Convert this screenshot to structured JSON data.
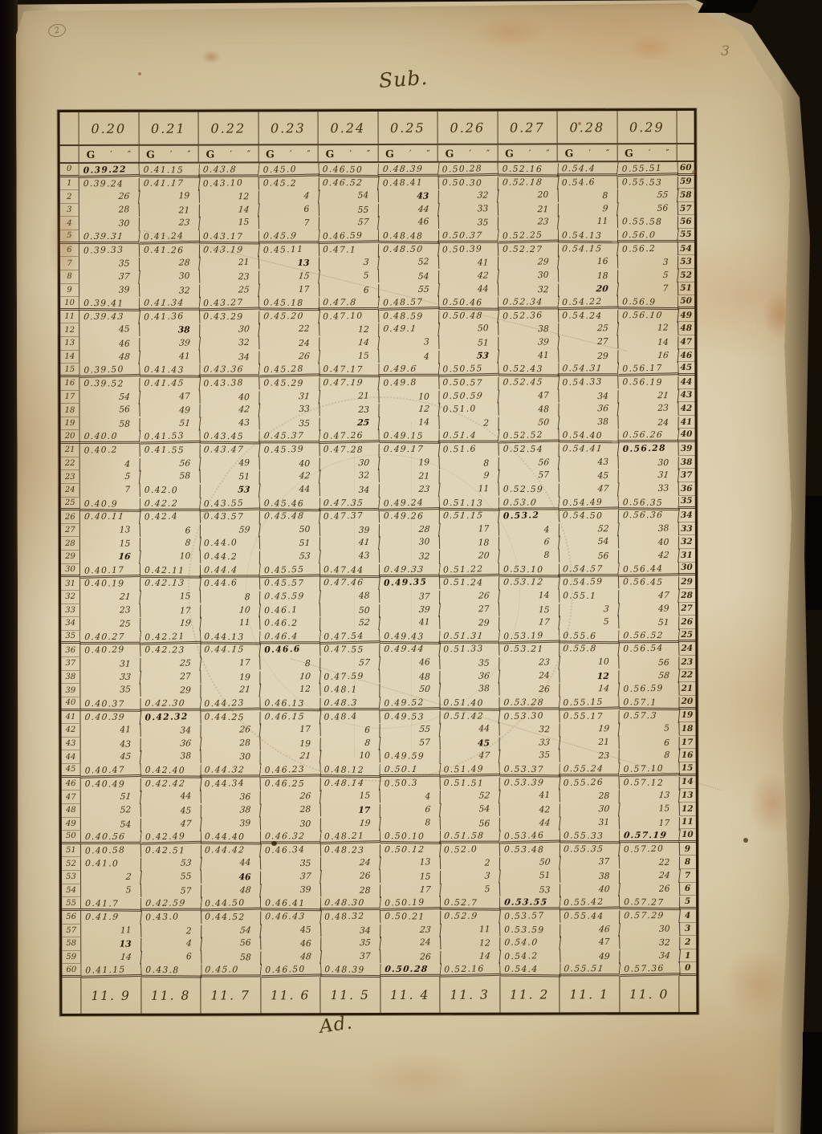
{
  "page": {
    "title_top": "Sub.",
    "title_bottom": "Ad.",
    "page_number": "3",
    "corner_mark": "2"
  },
  "colors": {
    "ink": "#3f2d10",
    "paper": "#d8cbab",
    "frame": "#2a1a08"
  },
  "table": {
    "unit_header": {
      "g": "G",
      "prime": "′",
      "double_prime": "″"
    },
    "left_row_numbers": [
      "0",
      "1",
      "2",
      "3",
      "4",
      "5",
      "6",
      "7",
      "8",
      "9",
      "10",
      "11",
      "12",
      "13",
      "14",
      "15",
      "16",
      "17",
      "18",
      "19",
      "20",
      "21",
      "22",
      "23",
      "24",
      "25",
      "26",
      "27",
      "28",
      "29",
      "30",
      "31",
      "32",
      "33",
      "34",
      "35",
      "36",
      "37",
      "38",
      "39",
      "40",
      "41",
      "42",
      "43",
      "44",
      "45",
      "46",
      "47",
      "48",
      "49",
      "50",
      "51",
      "52",
      "53",
      "54",
      "55",
      "56",
      "57",
      "58",
      "59",
      "60"
    ],
    "right_row_numbers": [
      "60",
      "59",
      "58",
      "57",
      "56",
      "55",
      "54",
      "53",
      "52",
      "51",
      "50",
      "49",
      "48",
      "47",
      "46",
      "45",
      "44",
      "43",
      "42",
      "41",
      "40",
      "39",
      "38",
      "37",
      "36",
      "35",
      "34",
      "33",
      "32",
      "31",
      "30",
      "29",
      "28",
      "27",
      "26",
      "25",
      "24",
      "23",
      "22",
      "21",
      "20",
      "19",
      "18",
      "17",
      "16",
      "15",
      "14",
      "13",
      "12",
      "11",
      "10",
      "9",
      "8",
      "7",
      "6",
      "5",
      "4",
      "3",
      "2",
      "1",
      "0"
    ],
    "columns": [
      {
        "header": "0.20",
        "footer": "11. 9",
        "cells": [
          "0.39.22",
          "0.39.24",
          "26",
          "28",
          "30",
          "0.39.31",
          "0.39.33",
          "35",
          "37",
          "39",
          "0.39.41",
          "0.39.43",
          "45",
          "46",
          "48",
          "0.39.50",
          "0.39.52",
          "54",
          "56",
          "58",
          "0.40.0",
          "0.40.2",
          "4",
          "5",
          "7",
          "0.40.9",
          "0.40.11",
          "13",
          "15",
          "16",
          "0.40.17",
          "0.40.19",
          "21",
          "23",
          "25",
          "0.40.27",
          "0.40.29",
          "31",
          "33",
          "35",
          "0.40.37",
          "0.40.39",
          "41",
          "43",
          "45",
          "0.40.47",
          "0.40.49",
          "51",
          "52",
          "54",
          "0.40.56",
          "0.40.58",
          "0.41.0",
          "2",
          "5",
          "0.41.7",
          "0.41.9",
          "11",
          "13",
          "14",
          "0.41.15"
        ]
      },
      {
        "header": "0.21",
        "footer": "11. 8",
        "cells": [
          "0.41.15",
          "0.41.17",
          "19",
          "21",
          "23",
          "0.41.24",
          "0.41.26",
          "28",
          "30",
          "32",
          "0.41.34",
          "0.41.36",
          "38",
          "39",
          "41",
          "0.41.43",
          "0.41.45",
          "47",
          "49",
          "51",
          "0.41.53",
          "0.41.55",
          "56",
          "58",
          "0.42.0",
          "0.42.2",
          "0.42.4",
          "6",
          "8",
          "10",
          "0.42.11",
          "0.42.13",
          "15",
          "17",
          "19",
          "0.42.21",
          "0.42.23",
          "25",
          "27",
          "29",
          "0.42.30",
          "0.42.32",
          "34",
          "36",
          "38",
          "0.42.40",
          "0.42.42",
          "44",
          "45",
          "47",
          "0.42.49",
          "0.42.51",
          "53",
          "55",
          "57",
          "0.42.59",
          "0.43.0",
          "2",
          "4",
          "6",
          "0.43.8"
        ]
      },
      {
        "header": "0.22",
        "footer": "11. 7",
        "cells": [
          "0.43.8",
          "0.43.10",
          "12",
          "14",
          "15",
          "0.43.17",
          "0.43.19",
          "21",
          "23",
          "25",
          "0.43.27",
          "0.43.29",
          "30",
          "32",
          "34",
          "0.43.36",
          "0.43.38",
          "40",
          "42",
          "43",
          "0.43.45",
          "0.43.47",
          "49",
          "51",
          "53",
          "0.43.55",
          "0.43.57",
          "59",
          "0.44.0",
          "0.44.2",
          "0.44.4",
          "0.44.6",
          "8",
          "10",
          "11",
          "0.44.13",
          "0.44.15",
          "17",
          "19",
          "21",
          "0.44.23",
          "0.44.25",
          "26",
          "28",
          "30",
          "0.44.32",
          "0.44.34",
          "36",
          "38",
          "39",
          "0.44.40",
          "0.44.42",
          "44",
          "46",
          "48",
          "0.44.50",
          "0.44.52",
          "54",
          "56",
          "58",
          "0.45.0"
        ]
      },
      {
        "header": "0.23",
        "footer": "11. 6",
        "cells": [
          "0.45.0",
          "0.45.2",
          "4",
          "6",
          "7",
          "0.45.9",
          "0.45.11",
          "13",
          "15",
          "17",
          "0.45.18",
          "0.45.20",
          "22",
          "24",
          "26",
          "0.45.28",
          "0.45.29",
          "31",
          "33",
          "35",
          "0.45.37",
          "0.45.39",
          "40",
          "42",
          "44",
          "0.45.46",
          "0.45.48",
          "50",
          "51",
          "53",
          "0.45.55",
          "0.45.57",
          "0.45.59",
          "0.46.1",
          "0.46.2",
          "0.46.4",
          "0.46.6",
          "8",
          "10",
          "12",
          "0.46.13",
          "0.46.15",
          "17",
          "19",
          "21",
          "0.46.23",
          "0.46.25",
          "26",
          "28",
          "30",
          "0.46.32",
          "0.46.34",
          "35",
          "37",
          "39",
          "0.46.41",
          "0.46.43",
          "45",
          "46",
          "48",
          "0.46.50"
        ]
      },
      {
        "header": "0.24",
        "footer": "11. 5",
        "cells": [
          "0.46.50",
          "0.46.52",
          "54",
          "55",
          "57",
          "0.46.59",
          "0.47.1",
          "3",
          "5",
          "6",
          "0.47.8",
          "0.47.10",
          "12",
          "14",
          "15",
          "0.47.17",
          "0.47.19",
          "21",
          "23",
          "25",
          "0.47.26",
          "0.47.28",
          "30",
          "32",
          "34",
          "0.47.35",
          "0.47.37",
          "39",
          "41",
          "43",
          "0.47.44",
          "0.47.46",
          "48",
          "50",
          "52",
          "0.47.54",
          "0.47.55",
          "57",
          "0.47.59",
          "0.48.1",
          "0.48.3",
          "0.48.4",
          "6",
          "8",
          "10",
          "0.48.12",
          "0.48.14",
          "15",
          "17",
          "19",
          "0.48.21",
          "0.48.23",
          "24",
          "26",
          "28",
          "0.48.30",
          "0.48.32",
          "34",
          "35",
          "37",
          "0.48.39"
        ]
      },
      {
        "header": "0.25",
        "footer": "11. 4",
        "cells": [
          "0.48.39",
          "0.48.41",
          "43",
          "44",
          "46",
          "0.48.48",
          "0.48.50",
          "52",
          "54",
          "55",
          "0.48.57",
          "0.48.59",
          "0.49.1",
          "3",
          "4",
          "0.49.6",
          "0.49.8",
          "10",
          "12",
          "14",
          "0.49.15",
          "0.49.17",
          "19",
          "21",
          "23",
          "0.49.24",
          "0.49.26",
          "28",
          "30",
          "32",
          "0.49.33",
          "0.49.35",
          "37",
          "39",
          "41",
          "0.49.43",
          "0.49.44",
          "46",
          "48",
          "50",
          "0.49.52",
          "0.49.53",
          "55",
          "57",
          "0.49.59",
          "0.50.1",
          "0.50.3",
          "4",
          "6",
          "8",
          "0.50.10",
          "0.50.12",
          "13",
          "15",
          "17",
          "0.50.19",
          "0.50.21",
          "23",
          "24",
          "26",
          "0.50.28"
        ]
      },
      {
        "header": "0.26",
        "footer": "11. 3",
        "cells": [
          "0.50.28",
          "0.50.30",
          "32",
          "33",
          "35",
          "0.50.37",
          "0.50.39",
          "41",
          "42",
          "44",
          "0.50.46",
          "0.50.48",
          "50",
          "51",
          "53",
          "0.50.55",
          "0.50.57",
          "0.50.59",
          "0.51.0",
          "2",
          "0.51.4",
          "0.51.6",
          "8",
          "9",
          "11",
          "0.51.13",
          "0.51.15",
          "17",
          "18",
          "20",
          "0.51.22",
          "0.51.24",
          "26",
          "27",
          "29",
          "0.51.31",
          "0.51.33",
          "35",
          "36",
          "38",
          "0.51.40",
          "0.51.42",
          "44",
          "45",
          "47",
          "0.51.49",
          "0.51.51",
          "52",
          "54",
          "56",
          "0.51.58",
          "0.52.0",
          "2",
          "3",
          "5",
          "0.52.7",
          "0.52.9",
          "11",
          "12",
          "14",
          "0.52.16"
        ]
      },
      {
        "header": "0.27",
        "footer": "11. 2",
        "cells": [
          "0.52.16",
          "0.52.18",
          "20",
          "21",
          "23",
          "0.52.25",
          "0.52.27",
          "29",
          "30",
          "32",
          "0.52.34",
          "0.52.36",
          "38",
          "39",
          "41",
          "0.52.43",
          "0.52.45",
          "47",
          "48",
          "50",
          "0.52.52",
          "0.52.54",
          "56",
          "57",
          "0.52.59",
          "0.53.0",
          "0.53.2",
          "4",
          "6",
          "8",
          "0.53.10",
          "0.53.12",
          "14",
          "15",
          "17",
          "0.53.19",
          "0.53.21",
          "23",
          "24",
          "26",
          "0.53.28",
          "0.53.30",
          "32",
          "33",
          "35",
          "0.53.37",
          "0.53.39",
          "41",
          "42",
          "44",
          "0.53.46",
          "0.53.48",
          "50",
          "51",
          "53",
          "0.53.55",
          "0.53.57",
          "0.53.59",
          "0.54.0",
          "0.54.2",
          "0.54.4"
        ]
      },
      {
        "header": "0.28",
        "footer": "11. 1",
        "cells": [
          "0.54.4",
          "0.54.6",
          "8",
          "9",
          "11",
          "0.54.13",
          "0.54.15",
          "16",
          "18",
          "20",
          "0.54.22",
          "0.54.24",
          "25",
          "27",
          "29",
          "0.54.31",
          "0.54.33",
          "34",
          "36",
          "38",
          "0.54.40",
          "0.54.41",
          "43",
          "45",
          "47",
          "0.54.49",
          "0.54.50",
          "52",
          "54",
          "56",
          "0.54.57",
          "0.54.59",
          "0.55.1",
          "3",
          "5",
          "0.55.6",
          "0.55.8",
          "10",
          "12",
          "14",
          "0.55.15",
          "0.55.17",
          "19",
          "21",
          "23",
          "0.55.24",
          "0.55.26",
          "28",
          "30",
          "31",
          "0.55.33",
          "0.55.35",
          "37",
          "38",
          "40",
          "0.55.42",
          "0.55.44",
          "46",
          "47",
          "49",
          "0.55.51"
        ]
      },
      {
        "header": "0.29",
        "footer": "11. 0",
        "cells": [
          "0.55.51",
          "0.55.53",
          "55",
          "56",
          "0.55.58",
          "0.56.0",
          "0.56.2",
          "3",
          "5",
          "7",
          "0.56.9",
          "0.56.10",
          "12",
          "14",
          "16",
          "0.56.17",
          "0.56.19",
          "21",
          "23",
          "24",
          "0.56.26",
          "0.56.28",
          "30",
          "31",
          "33",
          "0.56.35",
          "0.56.36",
          "38",
          "40",
          "42",
          "0.56.44",
          "0.56.45",
          "47",
          "49",
          "51",
          "0.56.52",
          "0.56.54",
          "56",
          "58",
          "0.56.59",
          "0.57.1",
          "0.57.3",
          "5",
          "6",
          "8",
          "0.57.10",
          "0.57.12",
          "13",
          "15",
          "17",
          "0.57.19",
          "0.57.20",
          "22",
          "24",
          "26",
          "0.57.27",
          "0.57.29",
          "30",
          "32",
          "34",
          "0.57.36"
        ]
      }
    ]
  },
  "cells_note_missing_row_59_29": null
}
